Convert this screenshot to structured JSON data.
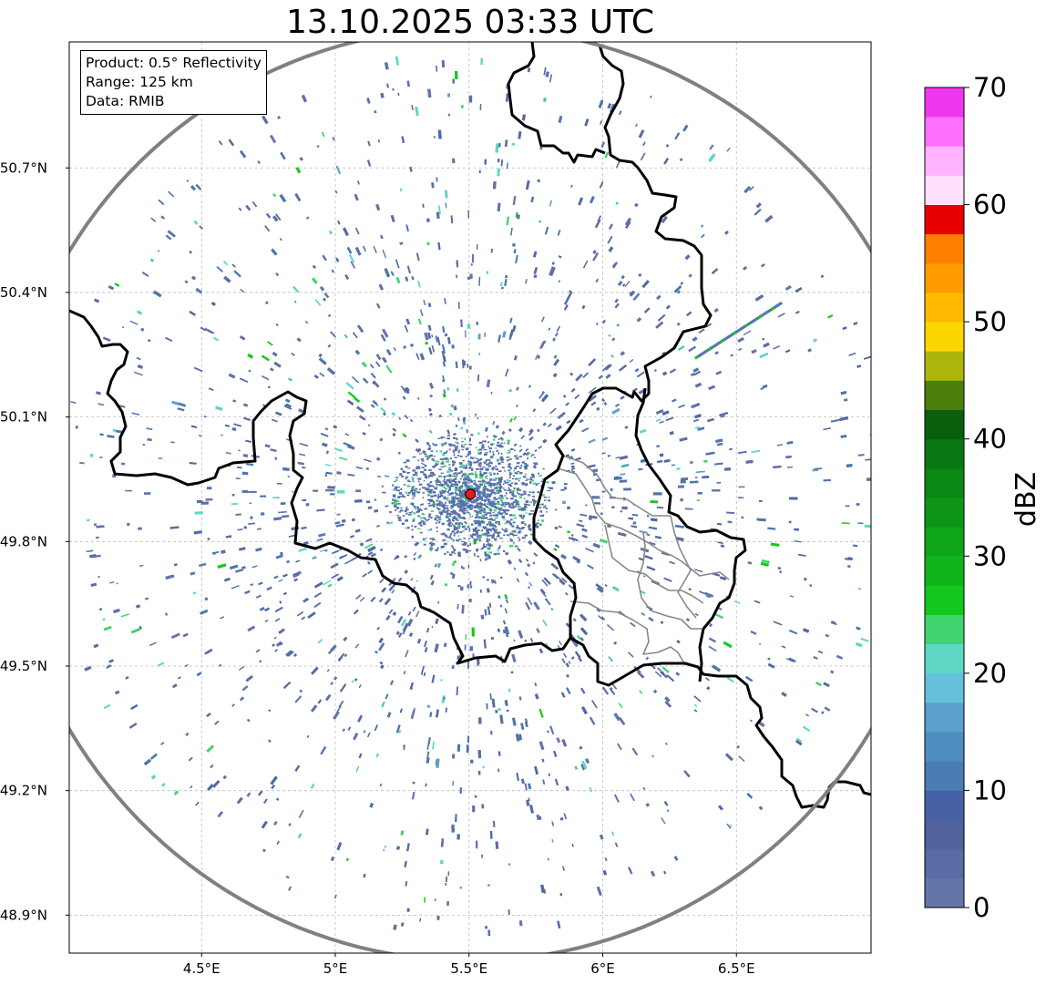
{
  "title": "13.10.2025 03:33 UTC",
  "info": {
    "product": "Product: 0.5° Reflectivity",
    "range": "Range: 125 km",
    "data": "Data: RMIB"
  },
  "map": {
    "lon_range": [
      4.0,
      7.0
    ],
    "lat_range": [
      48.8,
      51.0
    ],
    "radar_site": {
      "lon": 5.505,
      "lat": 49.914
    },
    "range_ring_km": 125,
    "lat_ticks": [
      {
        "value": 48.9,
        "label": "48.9°N"
      },
      {
        "value": 49.2,
        "label": "49.2°N"
      },
      {
        "value": 49.5,
        "label": "49.5°N"
      },
      {
        "value": 49.8,
        "label": "49.8°N"
      },
      {
        "value": 50.1,
        "label": "50.1°N"
      },
      {
        "value": 50.4,
        "label": "50.4°N"
      },
      {
        "value": 50.7,
        "label": "50.7°N"
      }
    ],
    "lon_ticks": [
      {
        "value": 4.5,
        "label": "4.5°E"
      },
      {
        "value": 5.0,
        "label": "5°E"
      },
      {
        "value": 5.5,
        "label": "5.5°E"
      },
      {
        "value": 6.0,
        "label": "6°E"
      },
      {
        "value": 6.5,
        "label": "6.5°E"
      }
    ],
    "gridlines": true,
    "colors": {
      "border": "#000000",
      "ring": "#808080",
      "grid": "#bbbbbb",
      "site": "#e41a1c",
      "admin": "#888888"
    }
  },
  "colorbar": {
    "label": "dBZ",
    "vmin": 0,
    "vmax": 70,
    "step": 2.5,
    "ticks": [
      {
        "value": 0,
        "label": "0"
      },
      {
        "value": 10,
        "label": "10"
      },
      {
        "value": 20,
        "label": "20"
      },
      {
        "value": 30,
        "label": "30"
      },
      {
        "value": 40,
        "label": "40"
      },
      {
        "value": 50,
        "label": "50"
      },
      {
        "value": 60,
        "label": "60"
      },
      {
        "value": 70,
        "label": "70"
      }
    ],
    "colors": [
      "#6475a9",
      "#5a6aa2",
      "#51629c",
      "#4660a6",
      "#4a7db4",
      "#4e8dc0",
      "#5aa1cb",
      "#64c0dc",
      "#5ed7c4",
      "#3fd46f",
      "#12c81d",
      "#10b41a",
      "#0ea518",
      "#0d9616",
      "#0b8714",
      "#0a7812",
      "#085f0e",
      "#4c7f0b",
      "#aeb50a",
      "#fdd600",
      "#ffba00",
      "#ff9d00",
      "#ff7f00",
      "#e60000",
      "#c60000",
      "#a80000",
      "#7e0000",
      "#ffe0ff",
      "#ffb3ff",
      "#ff70ff",
      "#ef37ef"
    ]
  },
  "chart_data": {
    "type": "heatmap",
    "title": "13.10.2025 03:33 UTC",
    "value_label": "dBZ",
    "value_range": [
      0,
      70
    ],
    "dominant_values": [
      2.5,
      5,
      10,
      17.5,
      22.5
    ]
  }
}
